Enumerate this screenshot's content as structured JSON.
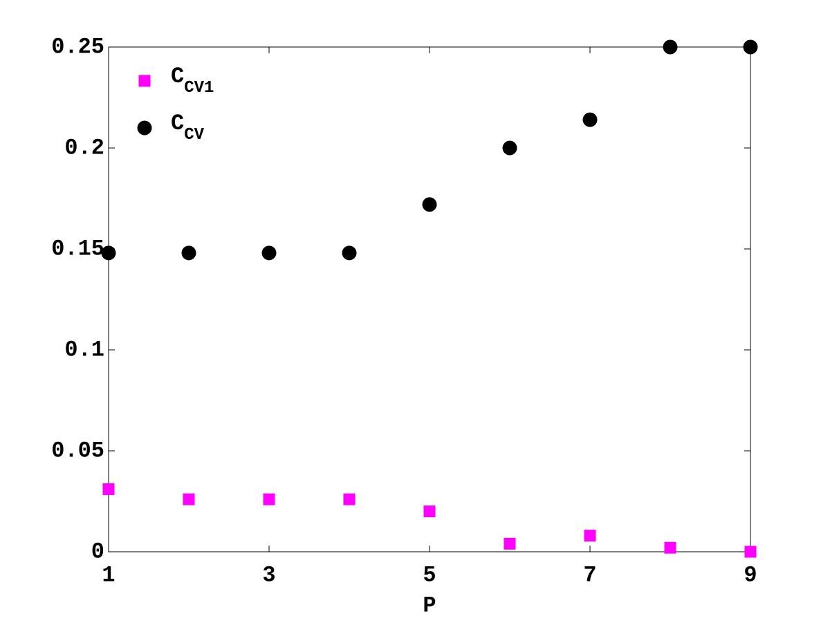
{
  "chart_data": {
    "type": "scatter",
    "x_label": "P",
    "xlim": [
      1,
      9
    ],
    "xticks": [
      1,
      3,
      5,
      7,
      9
    ],
    "ylim": [
      0,
      0.25
    ],
    "yticks": [
      0,
      0.05,
      0.1,
      0.15,
      0.2,
      0.25
    ],
    "legend": "upper left",
    "series": [
      {
        "name": "C",
        "subscript": "CV1",
        "color": "#ff00ff",
        "marker": "square",
        "x": [
          1,
          2,
          3,
          4,
          5,
          6,
          7,
          8,
          9
        ],
        "values": [
          0.031,
          0.026,
          0.026,
          0.026,
          0.02,
          0.004,
          0.008,
          0.002,
          0
        ]
      },
      {
        "name": "C",
        "subscript": "CV",
        "color": "#000000",
        "marker": "circle",
        "x": [
          1,
          2,
          3,
          4,
          5,
          6,
          7,
          8,
          9
        ],
        "values": [
          0.148,
          0.148,
          0.148,
          0.148,
          0.172,
          0.2,
          0.214,
          0.25,
          0.25
        ]
      }
    ]
  }
}
